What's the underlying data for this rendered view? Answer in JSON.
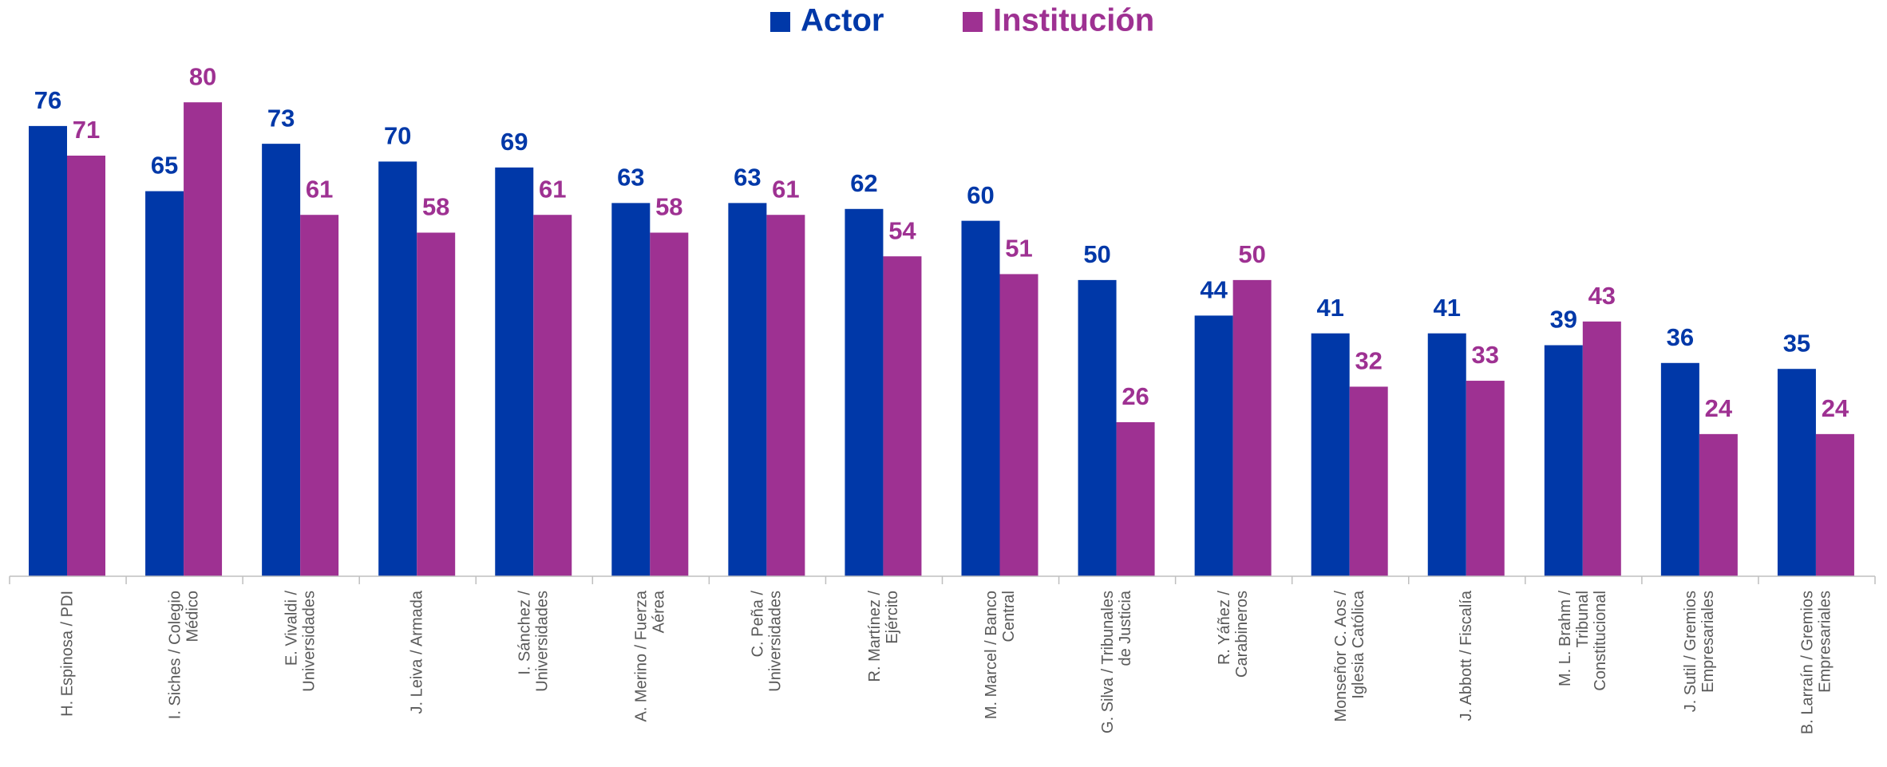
{
  "chart_data": {
    "type": "bar",
    "categories": [
      [
        "H. Espinosa / PDI"
      ],
      [
        "I. Siches / Colegio",
        "Médico"
      ],
      [
        "E. Vivaldi /",
        "Universidades"
      ],
      [
        "J. Leiva / Armada"
      ],
      [
        "I. Sánchez /",
        "Universidades"
      ],
      [
        "A. Merino / Fuerza",
        "Aérea"
      ],
      [
        "C. Peña /",
        "Universidades"
      ],
      [
        "R. Martínez /",
        "Ejército"
      ],
      [
        "M. Marcel / Banco",
        "Central"
      ],
      [
        "G. Silva / Tribunales",
        "de Justicia"
      ],
      [
        "R. Yáñez /",
        "Carabineros"
      ],
      [
        "Monseñor C. Aos /",
        "Iglesia Católica"
      ],
      [
        "J. Abbott / Fiscalía"
      ],
      [
        "M. L. Brahm /",
        "Tribunal",
        "Constitucional"
      ],
      [
        "J. Sutil / Gremios",
        "Empresariales"
      ],
      [
        "B. Larraín / Gremios",
        "Empresariales"
      ]
    ],
    "series": [
      {
        "name": "Actor",
        "color": "#0038a8",
        "values": [
          76,
          65,
          73,
          70,
          69,
          63,
          63,
          62,
          60,
          50,
          44,
          41,
          41,
          39,
          36,
          35
        ]
      },
      {
        "name": "Institución",
        "color": "#9e3192",
        "values": [
          71,
          80,
          61,
          58,
          61,
          58,
          61,
          54,
          51,
          26,
          50,
          32,
          33,
          43,
          24,
          24
        ]
      }
    ],
    "ylim": [
      0,
      97
    ],
    "legend": "top"
  }
}
